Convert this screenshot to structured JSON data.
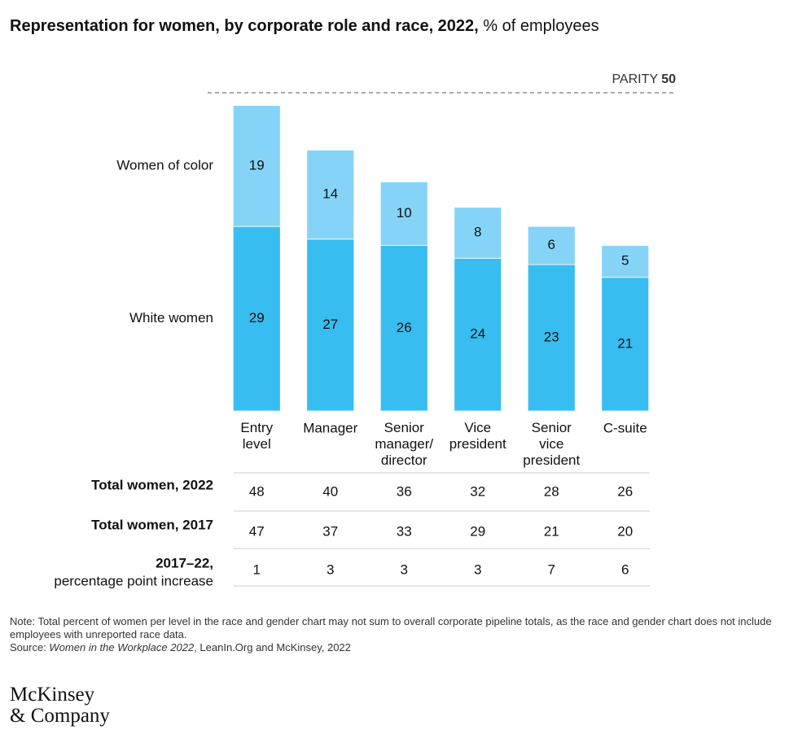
{
  "chart_data": {
    "type": "bar",
    "stacked": true,
    "title": "Representation for women, by corporate role and race, 2022,",
    "subtitle": "% of employees",
    "categories": [
      "Entry\nlevel",
      "Manager",
      "Senior\nmanager/\ndirector",
      "Vice\npresident",
      "Senior\nvice\npresident",
      "C-suite"
    ],
    "series": [
      {
        "name": "White women",
        "color": "#38bdf0",
        "values": [
          29,
          27,
          26,
          24,
          23,
          21
        ]
      },
      {
        "name": "Women of color",
        "color": "#85d4f7",
        "values": [
          19,
          14,
          10,
          8,
          6,
          5
        ]
      }
    ],
    "ylim": [
      0,
      50
    ],
    "parity": {
      "label": "PARITY",
      "value": 50
    }
  },
  "table": {
    "rows": [
      {
        "label": "Total women, 2022",
        "values": [
          48,
          40,
          36,
          32,
          28,
          26
        ]
      },
      {
        "label": "Total women, 2017",
        "values": [
          47,
          37,
          33,
          29,
          21,
          20
        ]
      },
      {
        "label": "2017–22,",
        "sublabel": "percentage point increase",
        "values": [
          1,
          3,
          3,
          3,
          7,
          6
        ]
      }
    ]
  },
  "note": "Note: Total percent of women per level in the race and gender chart may not sum to overall corporate pipeline totals, as the race and gender chart does not include employees with unreported race data.",
  "source": {
    "prefix": "Source: ",
    "italic": "Women in the Workplace 2022",
    "suffix": ", LeanIn.Org and McKinsey, 2022"
  },
  "logo": "McKinsey\n& Company"
}
